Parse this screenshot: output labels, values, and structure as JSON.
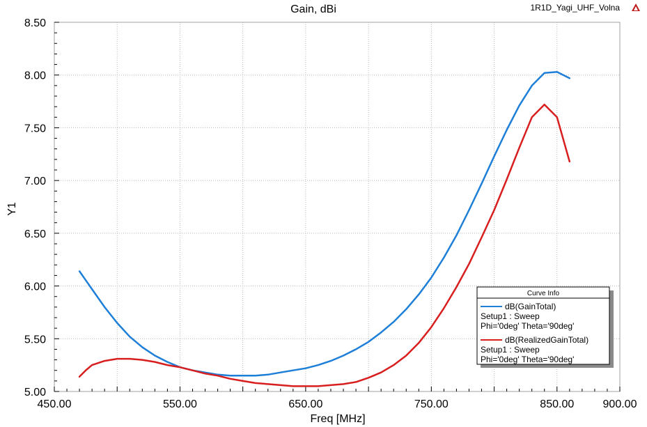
{
  "window": {
    "design_name": "1R1D_Yagi_UHF_Volna",
    "logo_icon": "ansys-logo-icon"
  },
  "chart_data": {
    "type": "line",
    "title": "Gain, dBi",
    "xlabel": "Freq [MHz]",
    "ylabel": "Y1",
    "xlim": [
      450,
      900
    ],
    "ylim": [
      5.0,
      8.5
    ],
    "x_ticks": [
      "450.00",
      "550.00",
      "650.00",
      "750.00",
      "850.00",
      "900.00"
    ],
    "x_tick_values": [
      450,
      550,
      650,
      750,
      850,
      900
    ],
    "x_grid_step": 50,
    "y_ticks": [
      "5.00",
      "5.50",
      "6.00",
      "6.50",
      "7.00",
      "7.50",
      "8.00",
      "8.50"
    ],
    "y_tick_values": [
      5.0,
      5.5,
      6.0,
      6.5,
      7.0,
      7.5,
      8.0,
      8.5
    ],
    "y_grid_step": 0.5,
    "grid": true,
    "legend_position": "bottom-right",
    "legend_title": "Curve Info",
    "series": [
      {
        "name": "dB(GainTotal)",
        "info_lines": [
          "Setup1 : Sweep",
          "Phi='0deg' Theta='90deg'"
        ],
        "color": "#1e7fd8",
        "x": [
          470,
          480,
          490,
          500,
          510,
          520,
          530,
          540,
          550,
          560,
          570,
          580,
          590,
          600,
          610,
          620,
          630,
          640,
          650,
          660,
          670,
          680,
          690,
          700,
          710,
          720,
          730,
          740,
          750,
          760,
          770,
          780,
          790,
          800,
          810,
          820,
          830,
          840,
          850,
          860
        ],
        "y": [
          6.14,
          5.97,
          5.8,
          5.65,
          5.52,
          5.42,
          5.34,
          5.28,
          5.23,
          5.2,
          5.18,
          5.16,
          5.15,
          5.15,
          5.15,
          5.16,
          5.18,
          5.2,
          5.22,
          5.25,
          5.29,
          5.34,
          5.4,
          5.47,
          5.56,
          5.66,
          5.78,
          5.92,
          6.08,
          6.27,
          6.48,
          6.72,
          6.97,
          7.23,
          7.48,
          7.71,
          7.9,
          8.02,
          8.03,
          7.97
        ]
      },
      {
        "name": "dB(RealizedGainTotal)",
        "info_lines": [
          "Setup1 : Sweep",
          "Phi='0deg' Theta='90deg'"
        ],
        "color": "#d81e1e",
        "x": [
          470,
          475,
          480,
          490,
          500,
          510,
          520,
          530,
          540,
          550,
          560,
          570,
          580,
          590,
          600,
          610,
          620,
          630,
          640,
          650,
          660,
          670,
          680,
          690,
          700,
          710,
          720,
          730,
          740,
          750,
          760,
          770,
          780,
          790,
          800,
          810,
          820,
          830,
          840,
          850,
          860
        ],
        "y": [
          5.14,
          5.2,
          5.25,
          5.29,
          5.31,
          5.31,
          5.3,
          5.28,
          5.25,
          5.23,
          5.2,
          5.17,
          5.15,
          5.12,
          5.1,
          5.08,
          5.07,
          5.06,
          5.05,
          5.05,
          5.05,
          5.06,
          5.07,
          5.09,
          5.13,
          5.18,
          5.25,
          5.34,
          5.46,
          5.61,
          5.79,
          5.99,
          6.21,
          6.46,
          6.72,
          7.01,
          7.31,
          7.6,
          7.72,
          7.6,
          7.18
        ]
      }
    ]
  }
}
